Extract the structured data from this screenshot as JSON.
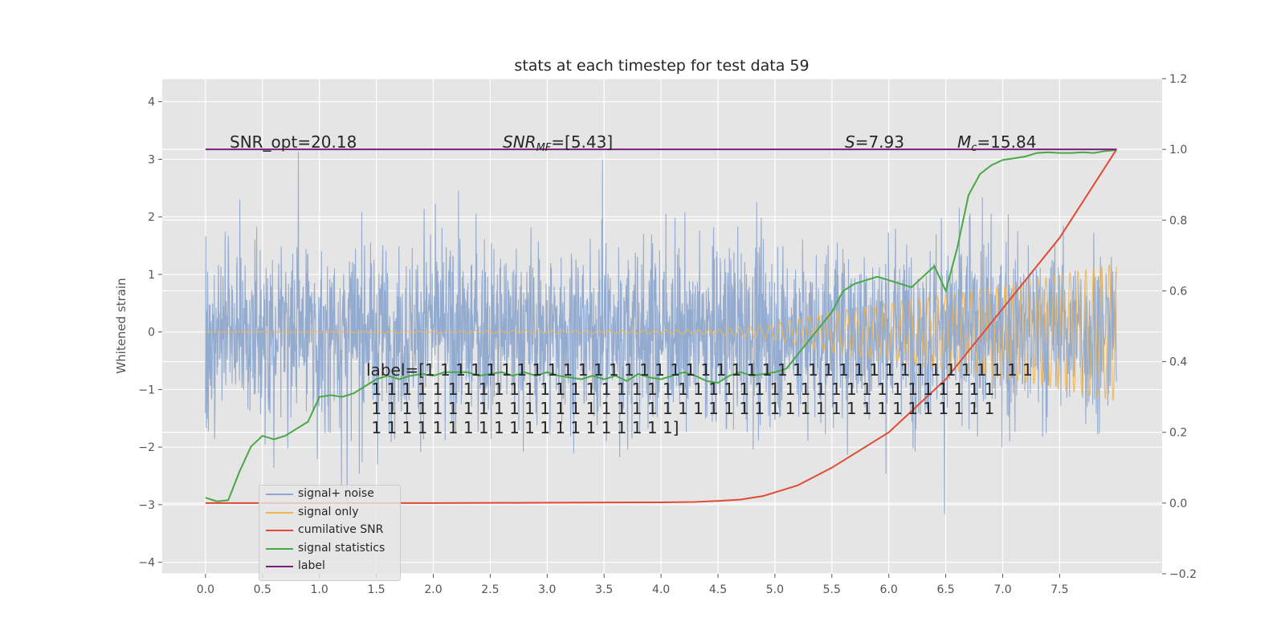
{
  "chart_data": {
    "type": "line",
    "title": "stats at each timestep for test data 59",
    "ylabel": "Whitened strain",
    "xlabel": "",
    "xlim": [
      -0.38,
      8.4
    ],
    "ylim": [
      -4.2,
      4.4
    ],
    "y2lim": [
      -0.2,
      1.2
    ],
    "x_ticks": [
      "0.0",
      "0.5",
      "1.0",
      "1.5",
      "2.0",
      "2.5",
      "3.0",
      "3.5",
      "4.0",
      "4.5",
      "5.0",
      "5.5",
      "6.0",
      "6.5",
      "7.0",
      "7.5"
    ],
    "y_ticks": [
      "4",
      "3",
      "2",
      "1",
      "0",
      "−1",
      "−2",
      "−3",
      "−4"
    ],
    "y2_ticks": [
      "1.2",
      "1.0",
      "0.8",
      "0.6",
      "0.4",
      "0.2",
      "0.0",
      "−0.2"
    ],
    "grid": true,
    "legend_position": "lower-left",
    "annotations": {
      "snr_opt": "SNR_opt=20.18",
      "snr_mf": "SNR",
      "snr_mf_sub": "MF",
      "snr_mf_value": "=[5.43]",
      "stat_s": "S",
      "stat_s_value": "=7.93",
      "mc": "M",
      "mc_sub": "c",
      "mc_value": "=15.84",
      "label_lines": [
        "label=[1 1 1 1 1 1 1 1 1 1 1 1 1 1 1 1 1 1 1 1 1 1 1 1 1 1 1 1 1 1 1 1 1 1 1 1 1 1 1 1",
        " 1 1 1 1 1 1 1 1 1 1 1 1 1 1 1 1 1 1 1 1 1 1 1 1 1 1 1 1 1 1 1 1 1 1 1 1 1 1 1 1 1",
        " 1 1 1 1 1 1 1 1 1 1 1 1 1 1 1 1 1 1 1 1 1 1 1 1 1 1 1 1 1 1 1 1 1 1 1 1 1 1 1 1 1",
        " 1 1 1 1 1 1 1 1 1 1 1 1 1 1 1 1 1 1 1 1]"
      ]
    },
    "series": [
      {
        "name": "signal+ noise",
        "axis": "left",
        "color": "#8fa8cf",
        "style": "dense noisy trace, roughly ±2 with occasional spikes to about ±4",
        "x_range": [
          0.0,
          8.0
        ],
        "band_sigma": 1.1
      },
      {
        "name": "signal only",
        "axis": "left",
        "color": "#f0b54f",
        "style": "chirp oscillation, near zero until about 4.5 then growing to about ±1.2 at 8.0",
        "x_range": [
          0.0,
          8.0
        ],
        "envelope": {
          "x": [
            0.0,
            4.5,
            5.0,
            5.5,
            6.0,
            6.5,
            7.0,
            7.5,
            8.0
          ],
          "y": [
            0.0,
            0.04,
            0.15,
            0.35,
            0.5,
            0.65,
            0.8,
            1.0,
            1.2
          ]
        }
      },
      {
        "name": "cumilative SNR",
        "axis": "right",
        "color": "#e24a33",
        "x": [
          0.0,
          1.0,
          2.0,
          3.0,
          4.0,
          4.3,
          4.5,
          4.7,
          4.9,
          5.0,
          5.2,
          5.5,
          6.0,
          6.5,
          7.0,
          7.5,
          8.0
        ],
        "y": [
          0.0,
          0.0,
          0.0,
          0.001,
          0.002,
          0.003,
          0.006,
          0.01,
          0.02,
          0.03,
          0.05,
          0.1,
          0.2,
          0.35,
          0.55,
          0.75,
          1.0
        ]
      },
      {
        "name": "signal statistics",
        "axis": "right",
        "color": "#47a845",
        "x": [
          0.0,
          0.1,
          0.2,
          0.3,
          0.4,
          0.5,
          0.6,
          0.7,
          0.8,
          0.9,
          1.0,
          1.1,
          1.2,
          1.3,
          1.4,
          1.5,
          1.6,
          1.7,
          1.8,
          1.9,
          2.0,
          2.1,
          2.2,
          2.3,
          2.4,
          2.5,
          2.6,
          2.7,
          2.8,
          2.9,
          3.0,
          3.1,
          3.2,
          3.3,
          3.4,
          3.5,
          3.6,
          3.7,
          3.8,
          3.9,
          4.0,
          4.1,
          4.2,
          4.3,
          4.4,
          4.5,
          4.6,
          4.7,
          4.8,
          4.9,
          5.0,
          5.1,
          5.2,
          5.3,
          5.4,
          5.5,
          5.6,
          5.7,
          5.8,
          5.9,
          6.0,
          6.1,
          6.2,
          6.3,
          6.4,
          6.5,
          6.6,
          6.7,
          6.8,
          6.9,
          7.0,
          7.1,
          7.2,
          7.3,
          7.4,
          7.5,
          7.6,
          7.7,
          7.8,
          7.9,
          8.0
        ],
        "y": [
          0.015,
          0.005,
          0.008,
          0.09,
          0.16,
          0.19,
          0.18,
          0.19,
          0.21,
          0.23,
          0.3,
          0.305,
          0.3,
          0.31,
          0.33,
          0.35,
          0.36,
          0.35,
          0.36,
          0.365,
          0.36,
          0.37,
          0.37,
          0.37,
          0.36,
          0.365,
          0.37,
          0.36,
          0.37,
          0.36,
          0.37,
          0.36,
          0.355,
          0.35,
          0.36,
          0.35,
          0.36,
          0.345,
          0.365,
          0.355,
          0.35,
          0.36,
          0.37,
          0.36,
          0.345,
          0.34,
          0.36,
          0.37,
          0.36,
          0.365,
          0.37,
          0.38,
          0.42,
          0.46,
          0.5,
          0.54,
          0.6,
          0.62,
          0.63,
          0.64,
          0.63,
          0.62,
          0.61,
          0.64,
          0.67,
          0.6,
          0.72,
          0.87,
          0.93,
          0.955,
          0.97,
          0.975,
          0.98,
          0.99,
          0.992,
          0.99,
          0.99,
          0.992,
          0.99,
          0.995,
          0.998
        ]
      },
      {
        "name": "label",
        "axis": "right",
        "color": "#7b1f7e",
        "x": [
          0.0,
          8.0
        ],
        "y": [
          1.0,
          1.0
        ]
      }
    ]
  }
}
